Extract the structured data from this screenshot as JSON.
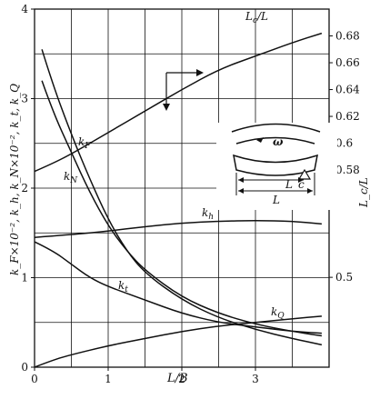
{
  "chart_data": {
    "type": "line",
    "xlabel": "L/B",
    "ylabel_left": "k_F×10⁻², k_h, k_N×10⁻², k_t, k_Q",
    "ylabel_right": "L_c/L",
    "xlim": [
      0,
      4
    ],
    "ylim_left": [
      0,
      4
    ],
    "ylim_right": [
      0.433,
      0.7
    ],
    "x_ticks": [
      "0",
      "1",
      "2",
      "3"
    ],
    "y_ticks_left": [
      "0",
      "1",
      "2",
      "3",
      "4"
    ],
    "y_ticks_right": [
      "0.5",
      "0.58",
      "0.6",
      "0.62",
      "0.64",
      "0.66",
      "0.68"
    ],
    "grid": true,
    "series": [
      {
        "name": "k_F",
        "axis": "left",
        "x": [
          0.1,
          0.25,
          0.5,
          0.75,
          1.0,
          1.25,
          1.5,
          2.0,
          2.5,
          3.0,
          3.5,
          3.9
        ],
        "y": [
          3.55,
          3.15,
          2.6,
          2.1,
          1.65,
          1.3,
          1.05,
          0.75,
          0.55,
          0.42,
          0.32,
          0.25
        ]
      },
      {
        "name": "k_N",
        "axis": "left",
        "x": [
          0.1,
          0.25,
          0.5,
          0.75,
          1.0,
          1.25,
          1.5,
          2.0,
          2.5,
          3.0,
          3.5,
          3.9
        ],
        "y": [
          3.2,
          2.85,
          2.4,
          1.95,
          1.58,
          1.3,
          1.08,
          0.78,
          0.6,
          0.48,
          0.4,
          0.35
        ]
      },
      {
        "name": "k_h",
        "axis": "left",
        "x": [
          0.0,
          0.5,
          1.0,
          1.5,
          2.0,
          2.5,
          3.0,
          3.5,
          3.9
        ],
        "y": [
          1.45,
          1.48,
          1.52,
          1.57,
          1.61,
          1.63,
          1.64,
          1.63,
          1.6
        ]
      },
      {
        "name": "k_t",
        "axis": "left",
        "x": [
          0.0,
          0.25,
          0.5,
          0.75,
          1.0,
          1.5,
          2.0,
          2.5,
          3.0,
          3.5,
          3.9
        ],
        "y": [
          1.4,
          1.3,
          1.15,
          1.0,
          0.9,
          0.75,
          0.6,
          0.5,
          0.45,
          0.4,
          0.38
        ]
      },
      {
        "name": "k_Q",
        "axis": "left",
        "x": [
          0.0,
          0.25,
          0.5,
          1.0,
          1.5,
          2.0,
          2.5,
          3.0,
          3.5,
          3.9
        ],
        "y": [
          0.0,
          0.08,
          0.14,
          0.24,
          0.32,
          0.4,
          0.46,
          0.5,
          0.54,
          0.57
        ]
      },
      {
        "name": "L_c/L",
        "axis": "right",
        "x": [
          0.0,
          0.25,
          0.5,
          1.0,
          1.5,
          2.0,
          2.5,
          3.0,
          3.5,
          3.9
        ],
        "y": [
          0.579,
          0.585,
          0.592,
          0.608,
          0.624,
          0.64,
          0.655,
          0.665,
          0.675,
          0.682
        ]
      }
    ],
    "curve_labels": [
      {
        "series": "k_F",
        "text": "k_F"
      },
      {
        "series": "k_N",
        "text": "k_N"
      },
      {
        "series": "k_h",
        "text": "k_h"
      },
      {
        "series": "k_t",
        "text": "k_t"
      },
      {
        "series": "k_Q",
        "text": "k_Q"
      },
      {
        "series": "L_c/L",
        "text": "L_c/L"
      }
    ],
    "inset": {
      "omega_label": "ω",
      "L_label": "L",
      "Lc_label": "L_c"
    }
  }
}
